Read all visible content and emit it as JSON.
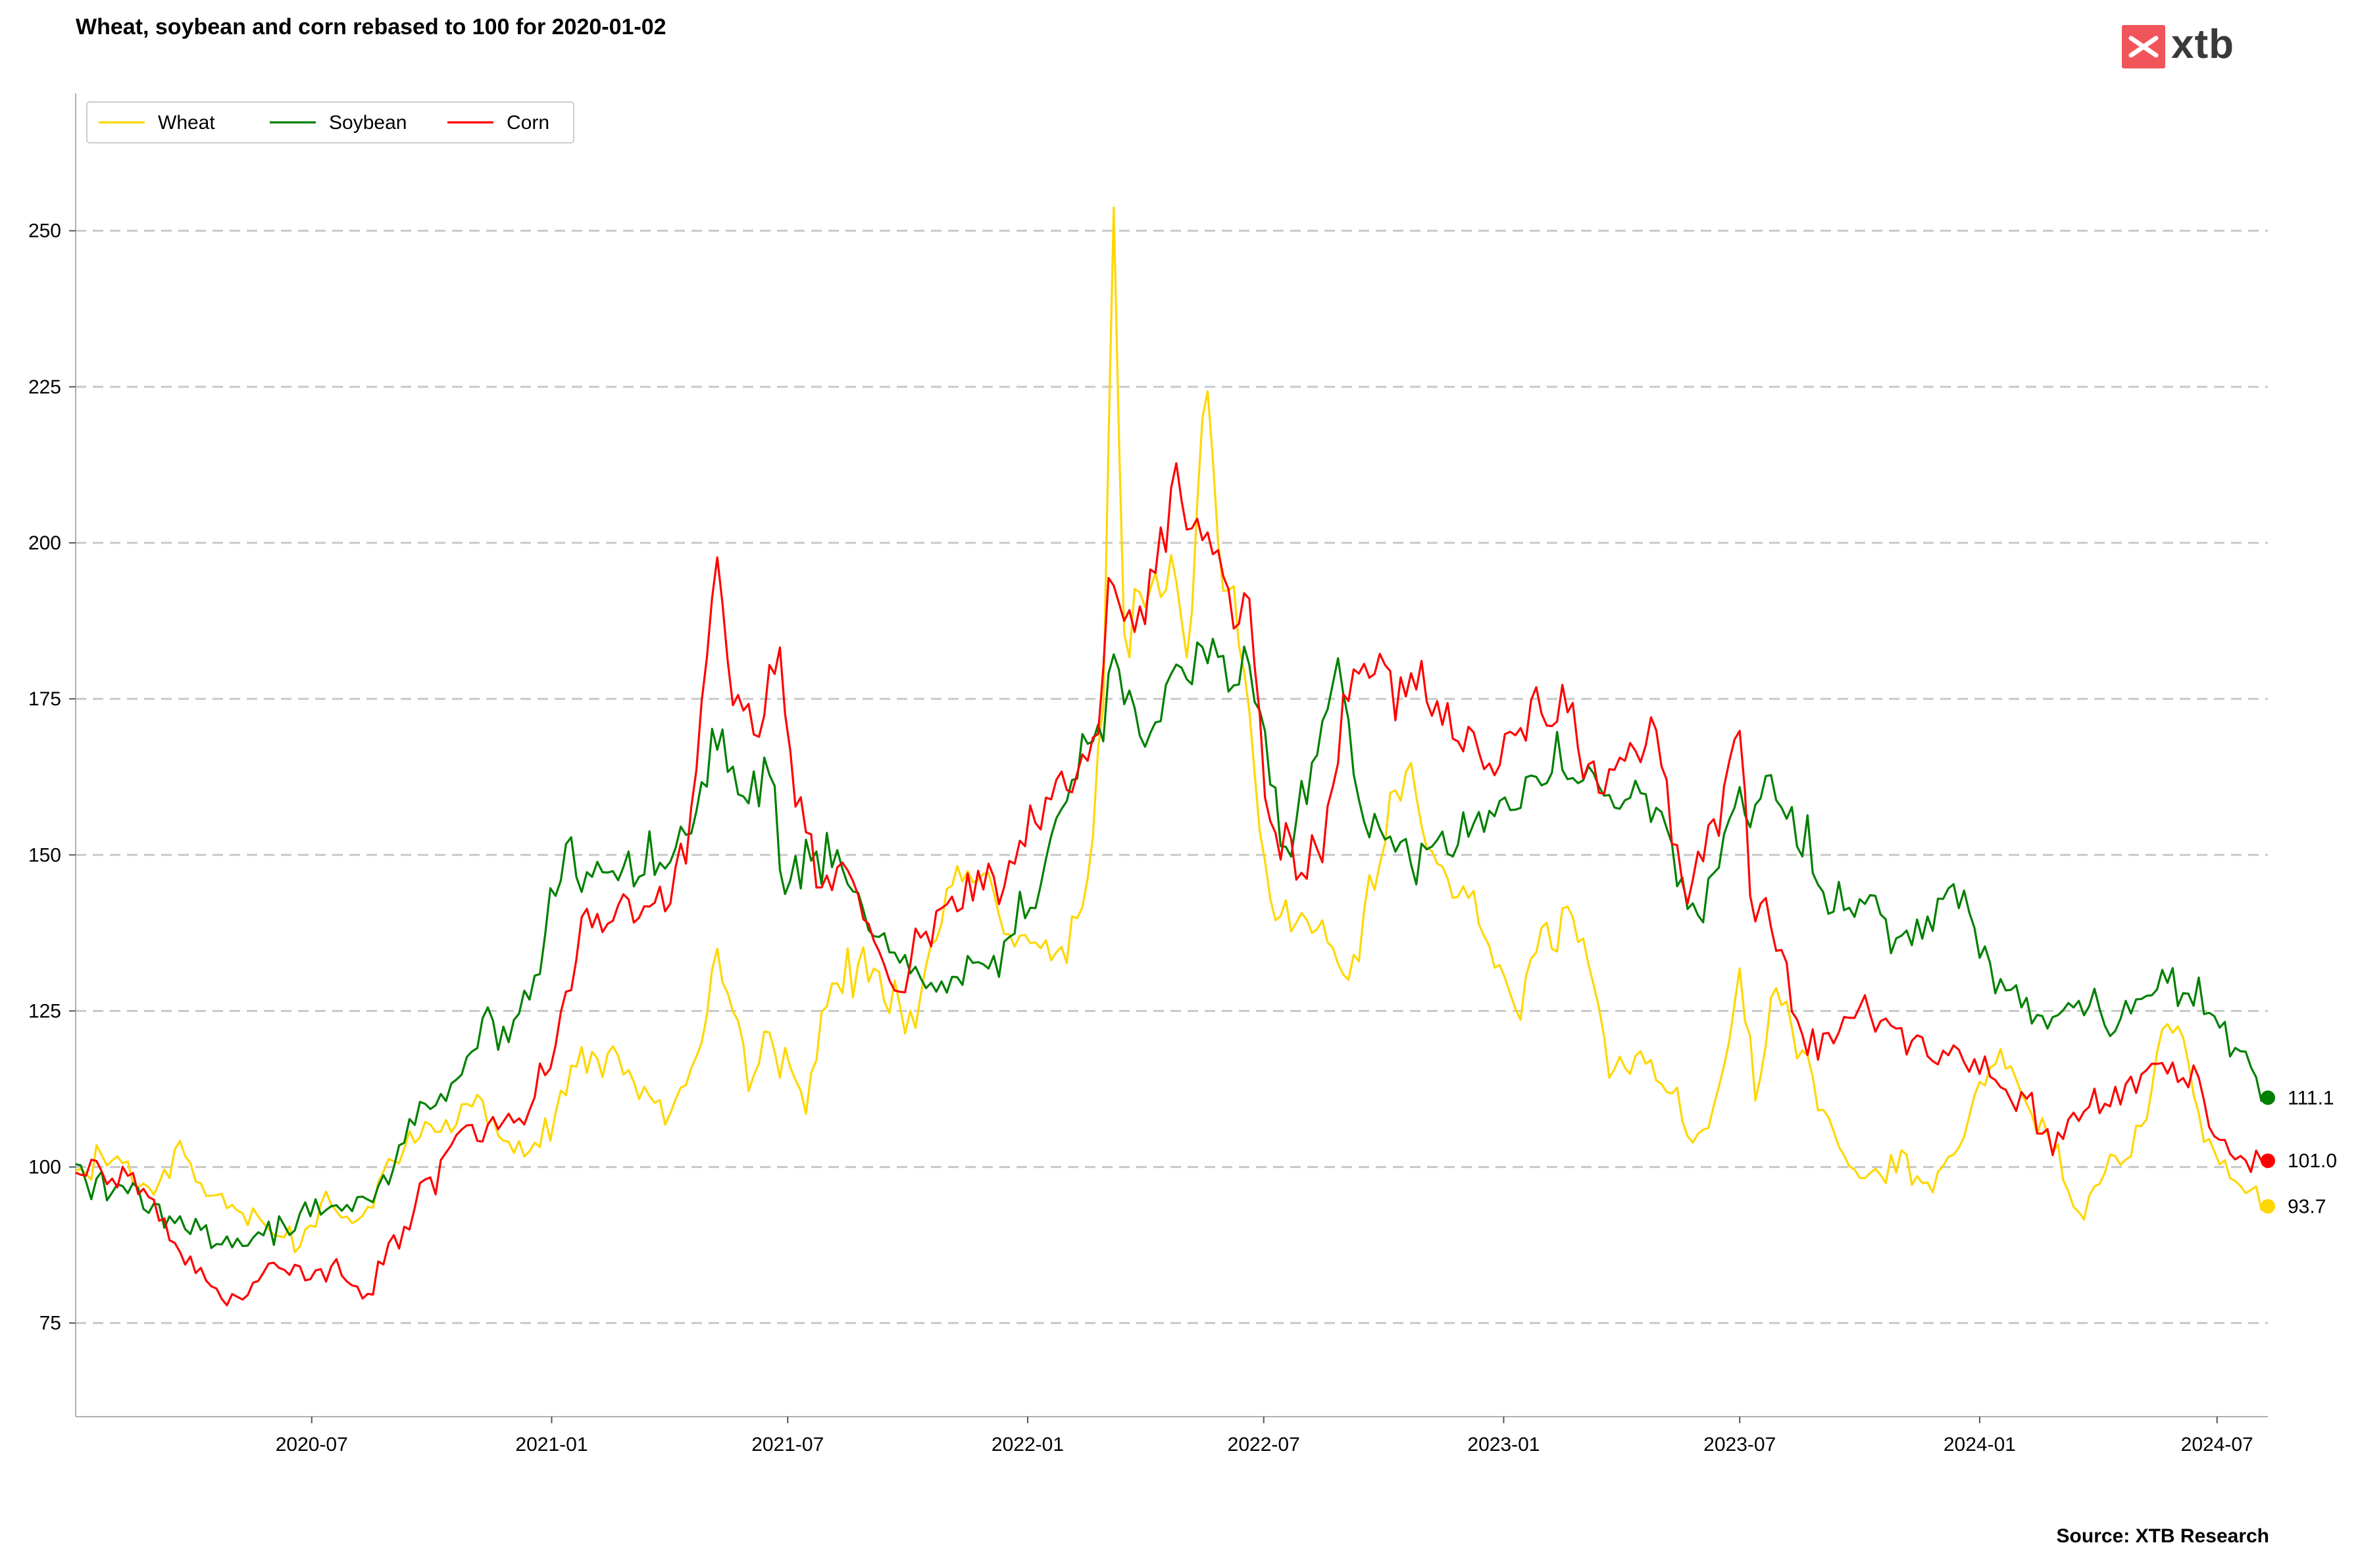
{
  "branding": {
    "logo_text": "xtb",
    "logo_color": "#f2545b",
    "source": "Source: XTB Research"
  },
  "chart_data": {
    "type": "line",
    "title": "Wheat, soybean and corn rebased to 100 for 2020-01-02",
    "xlabel": "",
    "ylabel": "",
    "x_range": [
      "2020-01-02",
      "2024-08-09"
    ],
    "ylim": [
      60,
      272
    ],
    "y_ticks": [
      75,
      100,
      125,
      150,
      175,
      200,
      225,
      250
    ],
    "x_ticks": [
      "2020-07",
      "2021-01",
      "2021-07",
      "2022-01",
      "2022-07",
      "2023-01",
      "2023-07",
      "2024-01",
      "2024-07"
    ],
    "grid": "horizontal dashed",
    "legend": "top-left",
    "series": [
      {
        "name": "Wheat",
        "color": "#FFD700",
        "end_value": "93.7",
        "points": [
          [
            "2020-01-02",
            100
          ],
          [
            "2020-02-01",
            102
          ],
          [
            "2020-03-01",
            95
          ],
          [
            "2020-03-20",
            103
          ],
          [
            "2020-04-10",
            97
          ],
          [
            "2020-05-01",
            94
          ],
          [
            "2020-06-01",
            90
          ],
          [
            "2020-06-20",
            87
          ],
          [
            "2020-07-10",
            95
          ],
          [
            "2020-08-01",
            90
          ],
          [
            "2020-08-15",
            94
          ],
          [
            "2020-09-01",
            100
          ],
          [
            "2020-10-01",
            108
          ],
          [
            "2020-11-01",
            110
          ],
          [
            "2020-12-15",
            102
          ],
          [
            "2021-01-10",
            113
          ],
          [
            "2021-02-01",
            118
          ],
          [
            "2021-03-01",
            115
          ],
          [
            "2021-04-01",
            108
          ],
          [
            "2021-04-20",
            115
          ],
          [
            "2021-05-07",
            138
          ],
          [
            "2021-05-20",
            125
          ],
          [
            "2021-06-01",
            112
          ],
          [
            "2021-06-15",
            122
          ],
          [
            "2021-07-15",
            110
          ],
          [
            "2021-08-01",
            128
          ],
          [
            "2021-09-01",
            133
          ],
          [
            "2021-10-01",
            122
          ],
          [
            "2021-11-01",
            145
          ],
          [
            "2021-11-20",
            147
          ],
          [
            "2021-12-15",
            138
          ],
          [
            "2022-01-10",
            135
          ],
          [
            "2022-02-01",
            133
          ],
          [
            "2022-02-15",
            145
          ],
          [
            "2022-02-28",
            175
          ],
          [
            "2022-03-08",
            254
          ],
          [
            "2022-03-15",
            185
          ],
          [
            "2022-04-01",
            190
          ],
          [
            "2022-04-20",
            195
          ],
          [
            "2022-05-05",
            180
          ],
          [
            "2022-05-17",
            228
          ],
          [
            "2022-05-25",
            205
          ],
          [
            "2022-06-10",
            190
          ],
          [
            "2022-06-25",
            162
          ],
          [
            "2022-07-10",
            140
          ],
          [
            "2022-08-01",
            142
          ],
          [
            "2022-08-20",
            135
          ],
          [
            "2022-09-10",
            132
          ],
          [
            "2022-10-01",
            152
          ],
          [
            "2022-10-20",
            165
          ],
          [
            "2022-11-10",
            150
          ],
          [
            "2022-12-01",
            145
          ],
          [
            "2022-12-20",
            135
          ],
          [
            "2023-01-10",
            125
          ],
          [
            "2023-02-01",
            138
          ],
          [
            "2023-02-20",
            142
          ],
          [
            "2023-03-15",
            125
          ],
          [
            "2023-04-01",
            115
          ],
          [
            "2023-04-20",
            118
          ],
          [
            "2023-05-10",
            110
          ],
          [
            "2023-05-31",
            105
          ],
          [
            "2023-06-20",
            115
          ],
          [
            "2023-07-01",
            130
          ],
          [
            "2023-07-15",
            112
          ],
          [
            "2023-07-28",
            130
          ],
          [
            "2023-08-15",
            118
          ],
          [
            "2023-09-01",
            108
          ],
          [
            "2023-10-01",
            98
          ],
          [
            "2023-11-01",
            102
          ],
          [
            "2023-11-25",
            95
          ],
          [
            "2023-12-10",
            102
          ],
          [
            "2024-01-01",
            112
          ],
          [
            "2024-01-20",
            118
          ],
          [
            "2024-02-10",
            108
          ],
          [
            "2024-03-01",
            102
          ],
          [
            "2024-03-15",
            93
          ],
          [
            "2024-04-01",
            98
          ],
          [
            "2024-04-20",
            100
          ],
          [
            "2024-05-10",
            110
          ],
          [
            "2024-05-25",
            125
          ],
          [
            "2024-06-15",
            110
          ],
          [
            "2024-07-01",
            100
          ],
          [
            "2024-07-20",
            97
          ],
          [
            "2024-08-09",
            93.7
          ]
        ]
      },
      {
        "name": "Soybean",
        "color": "#008000",
        "end_value": "111.1",
        "points": [
          [
            "2020-01-02",
            100
          ],
          [
            "2020-02-01",
            96
          ],
          [
            "2020-03-01",
            94
          ],
          [
            "2020-03-25",
            90
          ],
          [
            "2020-04-20",
            88
          ],
          [
            "2020-05-15",
            89
          ],
          [
            "2020-06-15",
            90
          ],
          [
            "2020-07-15",
            95
          ],
          [
            "2020-08-15",
            94
          ],
          [
            "2020-09-01",
            100
          ],
          [
            "2020-09-20",
            108
          ],
          [
            "2020-10-15",
            112
          ],
          [
            "2020-11-15",
            125
          ],
          [
            "2020-12-01",
            122
          ],
          [
            "2020-12-20",
            130
          ],
          [
            "2021-01-12",
            152
          ],
          [
            "2021-01-25",
            145
          ],
          [
            "2021-02-15",
            148
          ],
          [
            "2021-03-15",
            150
          ],
          [
            "2021-04-01",
            148
          ],
          [
            "2021-04-20",
            155
          ],
          [
            "2021-05-10",
            172
          ],
          [
            "2021-05-25",
            160
          ],
          [
            "2021-06-15",
            165
          ],
          [
            "2021-06-28",
            142
          ],
          [
            "2021-07-15",
            150
          ],
          [
            "2021-08-10",
            150
          ],
          [
            "2021-09-01",
            140
          ],
          [
            "2021-09-20",
            135
          ],
          [
            "2021-10-10",
            130
          ],
          [
            "2021-11-01",
            128
          ],
          [
            "2021-11-20",
            133
          ],
          [
            "2021-12-15",
            135
          ],
          [
            "2022-01-10",
            145
          ],
          [
            "2022-02-01",
            160
          ],
          [
            "2022-02-20",
            168
          ],
          [
            "2022-03-05",
            180
          ],
          [
            "2022-03-20",
            175
          ],
          [
            "2022-04-10",
            170
          ],
          [
            "2022-04-25",
            180
          ],
          [
            "2022-05-15",
            182
          ],
          [
            "2022-06-01",
            178
          ],
          [
            "2022-06-15",
            183
          ],
          [
            "2022-07-01",
            170
          ],
          [
            "2022-07-15",
            150
          ],
          [
            "2022-08-10",
            165
          ],
          [
            "2022-08-25",
            180
          ],
          [
            "2022-09-10",
            160
          ],
          [
            "2022-10-01",
            155
          ],
          [
            "2022-10-25",
            148
          ],
          [
            "2022-11-15",
            152
          ],
          [
            "2022-12-10",
            155
          ],
          [
            "2023-01-01",
            158
          ],
          [
            "2023-02-01",
            162
          ],
          [
            "2023-02-20",
            164
          ],
          [
            "2023-03-15",
            160
          ],
          [
            "2023-04-10",
            160
          ],
          [
            "2023-05-01",
            158
          ],
          [
            "2023-05-25",
            140
          ],
          [
            "2023-06-15",
            150
          ],
          [
            "2023-07-01",
            160
          ],
          [
            "2023-07-20",
            162
          ],
          [
            "2023-08-10",
            155
          ],
          [
            "2023-09-01",
            145
          ],
          [
            "2023-09-20",
            142
          ],
          [
            "2023-10-15",
            140
          ],
          [
            "2023-11-05",
            138
          ],
          [
            "2023-11-25",
            140
          ],
          [
            "2023-12-10",
            145
          ],
          [
            "2024-01-01",
            133
          ],
          [
            "2024-01-25",
            128
          ],
          [
            "2024-02-20",
            123
          ],
          [
            "2024-03-15",
            127
          ],
          [
            "2024-04-10",
            122
          ],
          [
            "2024-05-01",
            126
          ],
          [
            "2024-05-20",
            132
          ],
          [
            "2024-06-10",
            127
          ],
          [
            "2024-07-01",
            124
          ],
          [
            "2024-07-20",
            118
          ],
          [
            "2024-08-09",
            111.1
          ]
        ]
      },
      {
        "name": "Corn",
        "color": "#FF0000",
        "end_value": "101.0",
        "points": [
          [
            "2020-01-02",
            100
          ],
          [
            "2020-02-01",
            99
          ],
          [
            "2020-03-01",
            95
          ],
          [
            "2020-03-15",
            88
          ],
          [
            "2020-04-01",
            85
          ],
          [
            "2020-04-15",
            82
          ],
          [
            "2020-04-28",
            78
          ],
          [
            "2020-05-20",
            82
          ],
          [
            "2020-06-15",
            83
          ],
          [
            "2020-07-01",
            82
          ],
          [
            "2020-07-20",
            85
          ],
          [
            "2020-08-05",
            80
          ],
          [
            "2020-08-12",
            79
          ],
          [
            "2020-09-01",
            88
          ],
          [
            "2020-09-20",
            95
          ],
          [
            "2020-10-15",
            104
          ],
          [
            "2020-11-15",
            107
          ],
          [
            "2020-12-15",
            108
          ],
          [
            "2021-01-10",
            125
          ],
          [
            "2021-01-25",
            140
          ],
          [
            "2021-02-15",
            140
          ],
          [
            "2021-03-15",
            142
          ],
          [
            "2021-04-01",
            142
          ],
          [
            "2021-04-20",
            160
          ],
          [
            "2021-05-07",
            197
          ],
          [
            "2021-05-20",
            175
          ],
          [
            "2021-06-10",
            170
          ],
          [
            "2021-06-25",
            184
          ],
          [
            "2021-07-05",
            160
          ],
          [
            "2021-07-25",
            145
          ],
          [
            "2021-08-15",
            150
          ],
          [
            "2021-09-01",
            138
          ],
          [
            "2021-09-20",
            128
          ],
          [
            "2021-10-15",
            136
          ],
          [
            "2021-11-10",
            140
          ],
          [
            "2021-12-01",
            150
          ],
          [
            "2021-12-20",
            147
          ],
          [
            "2022-01-10",
            155
          ],
          [
            "2022-02-01",
            160
          ],
          [
            "2022-02-25",
            170
          ],
          [
            "2022-03-05",
            193
          ],
          [
            "2022-03-20",
            188
          ],
          [
            "2022-04-05",
            195
          ],
          [
            "2022-04-25",
            208
          ],
          [
            "2022-05-15",
            205
          ],
          [
            "2022-06-01",
            195
          ],
          [
            "2022-06-20",
            190
          ],
          [
            "2022-07-05",
            155
          ],
          [
            "2022-07-25",
            148
          ],
          [
            "2022-08-15",
            150
          ],
          [
            "2022-09-01",
            175
          ],
          [
            "2022-09-20",
            180
          ],
          [
            "2022-10-10",
            175
          ],
          [
            "2022-10-25",
            178
          ],
          [
            "2022-11-15",
            172
          ],
          [
            "2022-12-15",
            165
          ],
          [
            "2023-01-05",
            170
          ],
          [
            "2023-01-25",
            174
          ],
          [
            "2023-02-20",
            173
          ],
          [
            "2023-03-15",
            162
          ],
          [
            "2023-04-10",
            168
          ],
          [
            "2023-04-25",
            172
          ],
          [
            "2023-05-20",
            142
          ],
          [
            "2023-06-05",
            150
          ],
          [
            "2023-06-20",
            162
          ],
          [
            "2023-07-01",
            170
          ],
          [
            "2023-07-10",
            145
          ],
          [
            "2023-07-25",
            140
          ],
          [
            "2023-08-15",
            122
          ],
          [
            "2023-09-10",
            120
          ],
          [
            "2023-10-01",
            125
          ],
          [
            "2023-10-20",
            123
          ],
          [
            "2023-11-15",
            120
          ],
          [
            "2023-12-10",
            118
          ],
          [
            "2024-01-05",
            116
          ],
          [
            "2024-01-20",
            112
          ],
          [
            "2024-02-10",
            110
          ],
          [
            "2024-02-25",
            103
          ],
          [
            "2024-03-15",
            108
          ],
          [
            "2024-04-10",
            112
          ],
          [
            "2024-05-01",
            113
          ],
          [
            "2024-05-20",
            116
          ],
          [
            "2024-06-15",
            115
          ],
          [
            "2024-07-01",
            103
          ],
          [
            "2024-07-15",
            100
          ],
          [
            "2024-08-09",
            101.0
          ]
        ]
      }
    ]
  }
}
